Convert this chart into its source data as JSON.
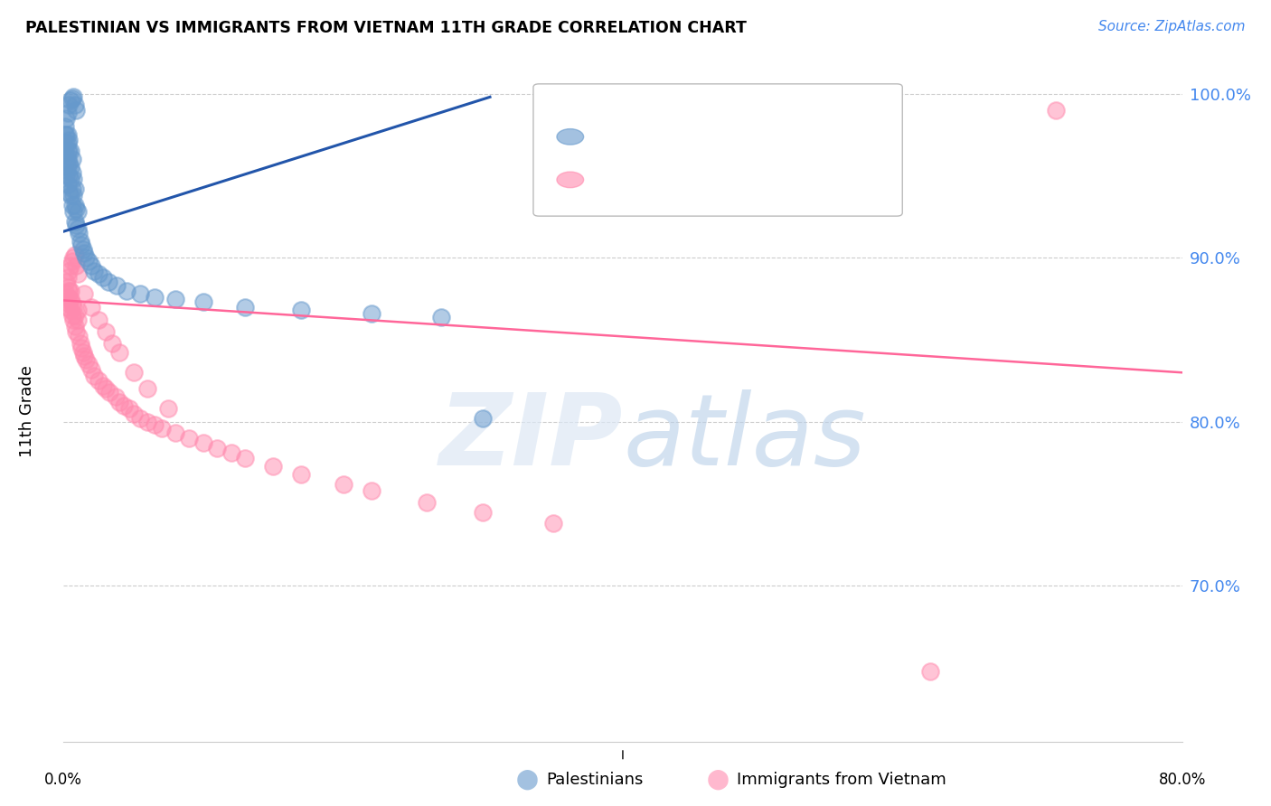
{
  "title": "PALESTINIAN VS IMMIGRANTS FROM VIETNAM 11TH GRADE CORRELATION CHART",
  "source": "Source: ZipAtlas.com",
  "ylabel": "11th Grade",
  "xlim": [
    0.0,
    0.8
  ],
  "ylim": [
    0.605,
    1.008
  ],
  "yticks": [
    0.7,
    0.8,
    0.9,
    1.0
  ],
  "ytick_labels": [
    "70.0%",
    "80.0%",
    "90.0%",
    "100.0%"
  ],
  "palestinians_color": "#6699CC",
  "vietnam_color": "#FF8AAE",
  "trend_blue": "#2255AA",
  "trend_pink": "#FF6699",
  "palestinians_label": "Palestinians",
  "vietnam_label": "Immigrants from Vietnam",
  "blue_line_x": [
    0.0,
    0.305
  ],
  "blue_line_y": [
    0.916,
    0.998
  ],
  "pink_line_x": [
    0.0,
    0.8
  ],
  "pink_line_y": [
    0.874,
    0.83
  ],
  "palestinians_x": [
    0.001,
    0.001,
    0.001,
    0.002,
    0.002,
    0.002,
    0.002,
    0.002,
    0.003,
    0.003,
    0.003,
    0.003,
    0.003,
    0.003,
    0.004,
    0.004,
    0.004,
    0.004,
    0.004,
    0.005,
    0.005,
    0.005,
    0.005,
    0.006,
    0.006,
    0.006,
    0.006,
    0.007,
    0.007,
    0.007,
    0.008,
    0.008,
    0.008,
    0.009,
    0.009,
    0.01,
    0.01,
    0.011,
    0.012,
    0.013,
    0.014,
    0.015,
    0.016,
    0.018,
    0.02,
    0.022,
    0.025,
    0.028,
    0.032,
    0.038,
    0.045,
    0.055,
    0.065,
    0.08,
    0.1,
    0.13,
    0.17,
    0.22,
    0.27,
    0.3,
    0.003,
    0.004,
    0.005,
    0.006,
    0.007,
    0.008,
    0.009
  ],
  "palestinians_y": [
    0.965,
    0.975,
    0.98,
    0.95,
    0.96,
    0.97,
    0.975,
    0.985,
    0.945,
    0.955,
    0.96,
    0.965,
    0.97,
    0.975,
    0.94,
    0.95,
    0.958,
    0.965,
    0.972,
    0.938,
    0.948,
    0.955,
    0.965,
    0.932,
    0.942,
    0.952,
    0.96,
    0.928,
    0.938,
    0.948,
    0.922,
    0.932,
    0.942,
    0.92,
    0.93,
    0.918,
    0.928,
    0.915,
    0.91,
    0.908,
    0.905,
    0.903,
    0.9,
    0.898,
    0.895,
    0.892,
    0.89,
    0.888,
    0.885,
    0.883,
    0.88,
    0.878,
    0.876,
    0.875,
    0.873,
    0.87,
    0.868,
    0.866,
    0.864,
    0.802,
    0.988,
    0.993,
    0.996,
    0.997,
    0.998,
    0.993,
    0.99
  ],
  "vietnam_x": [
    0.001,
    0.001,
    0.002,
    0.002,
    0.003,
    0.003,
    0.003,
    0.004,
    0.004,
    0.005,
    0.005,
    0.005,
    0.006,
    0.006,
    0.007,
    0.007,
    0.008,
    0.008,
    0.009,
    0.01,
    0.01,
    0.011,
    0.012,
    0.013,
    0.014,
    0.015,
    0.016,
    0.018,
    0.02,
    0.022,
    0.025,
    0.028,
    0.03,
    0.033,
    0.037,
    0.04,
    0.043,
    0.047,
    0.05,
    0.055,
    0.06,
    0.065,
    0.07,
    0.08,
    0.09,
    0.1,
    0.11,
    0.12,
    0.13,
    0.15,
    0.17,
    0.2,
    0.22,
    0.26,
    0.3,
    0.35,
    0.003,
    0.004,
    0.005,
    0.006,
    0.007,
    0.008,
    0.009,
    0.01,
    0.015,
    0.02,
    0.025,
    0.03,
    0.035,
    0.04,
    0.05,
    0.06,
    0.075,
    0.62,
    0.71
  ],
  "vietnam_y": [
    0.968,
    0.956,
    0.878,
    0.885,
    0.87,
    0.876,
    0.882,
    0.872,
    0.88,
    0.868,
    0.875,
    0.88,
    0.865,
    0.872,
    0.862,
    0.87,
    0.858,
    0.865,
    0.855,
    0.862,
    0.868,
    0.852,
    0.848,
    0.845,
    0.842,
    0.84,
    0.838,
    0.835,
    0.832,
    0.828,
    0.825,
    0.822,
    0.82,
    0.818,
    0.815,
    0.812,
    0.81,
    0.808,
    0.805,
    0.802,
    0.8,
    0.798,
    0.796,
    0.793,
    0.79,
    0.787,
    0.784,
    0.781,
    0.778,
    0.773,
    0.768,
    0.762,
    0.758,
    0.751,
    0.745,
    0.738,
    0.888,
    0.892,
    0.895,
    0.898,
    0.9,
    0.902,
    0.895,
    0.89,
    0.878,
    0.87,
    0.862,
    0.855,
    0.848,
    0.842,
    0.83,
    0.82,
    0.808,
    0.648,
    0.99
  ]
}
